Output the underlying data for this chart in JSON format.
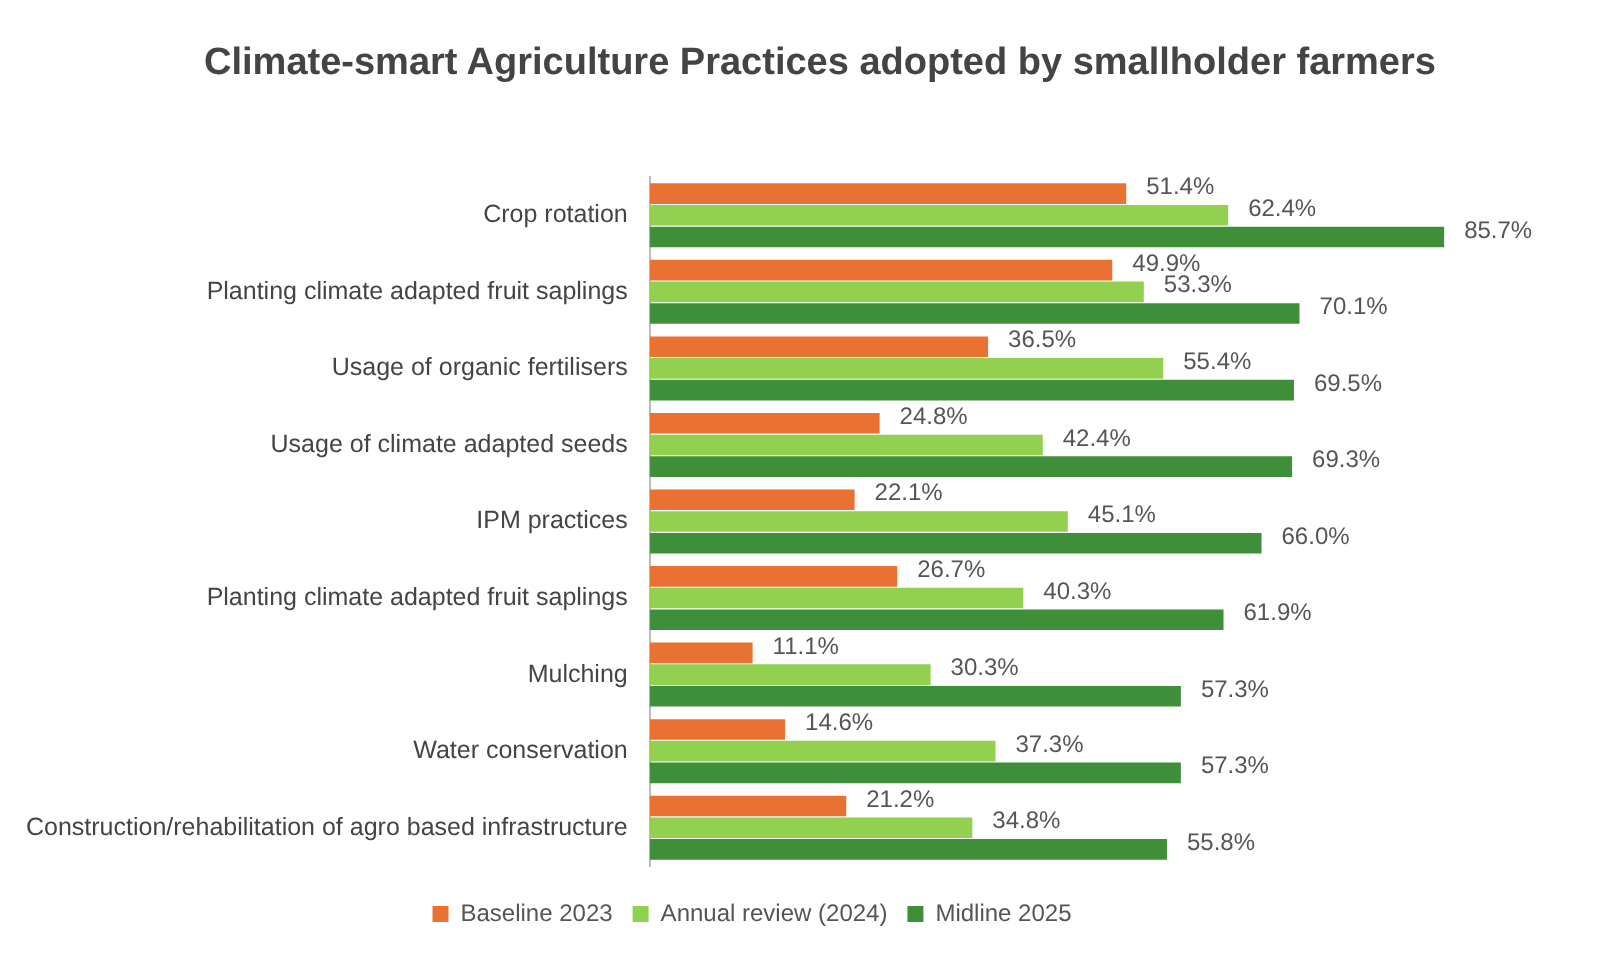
{
  "chart_data": {
    "type": "bar",
    "orientation": "horizontal",
    "title": "Climate-smart Agriculture Practices adopted by smallholder farmers",
    "categories": [
      "Crop rotation",
      "Planting climate adapted fruit saplings",
      "Usage of organic fertilisers",
      "Usage of climate adapted seeds",
      "IPM practices",
      "Planting climate adapted fruit saplings",
      "Mulching",
      "Water conservation",
      "Construction/rehabilitation of agro based infrastructure"
    ],
    "series": [
      {
        "name": "Baseline 2023",
        "color": "#e97132",
        "values": [
          51.4,
          49.9,
          36.5,
          24.8,
          22.1,
          26.7,
          11.1,
          14.6,
          21.2
        ],
        "value_labels": [
          "51.4%",
          "49.9%",
          "36.5%",
          "24.8%",
          "22.1%",
          "26.7%",
          "11.1%",
          "14.6%",
          "21.2%"
        ]
      },
      {
        "name": "Annual review (2024)",
        "color": "#92d050",
        "values": [
          62.4,
          53.3,
          55.4,
          42.4,
          45.1,
          40.3,
          30.3,
          37.3,
          34.8
        ],
        "value_labels": [
          "62.4%",
          "53.3%",
          "55.4%",
          "42.4%",
          "45.1%",
          "40.3%",
          "30.3%",
          "37.3%",
          "34.8%"
        ]
      },
      {
        "name": "Midline 2025",
        "color": "#3f8f3a",
        "values": [
          85.7,
          70.1,
          69.5,
          69.3,
          66.0,
          61.9,
          57.3,
          57.3,
          55.8
        ],
        "value_labels": [
          "85.7%",
          "70.1%",
          "69.5%",
          "69.3%",
          "66.0%",
          "61.9%",
          "57.3%",
          "57.3%",
          "55.8%"
        ]
      }
    ],
    "grid": false,
    "legend": "bottom",
    "tick_labels": "y"
  }
}
